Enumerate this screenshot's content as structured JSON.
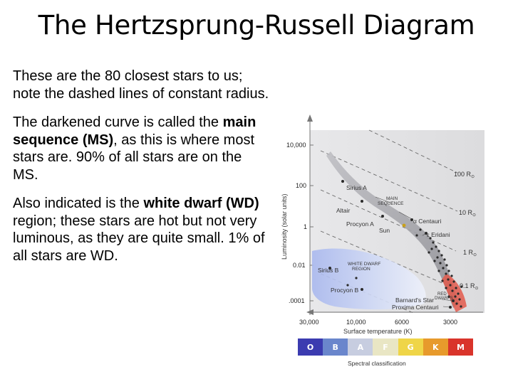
{
  "title": "The Hertzsprung-Russell Diagram",
  "paragraphs": {
    "p1": "These are the 80 closest stars to us; note the dashed lines of constant radius.",
    "p2_pre": "The darkened curve is called the ",
    "p2_bold": "main sequence (MS)",
    "p2_post": ", as this is where most stars are. 90% of all stars are on the MS.",
    "p3_pre": "Also indicated is the ",
    "p3_bold": "white dwarf (WD)",
    "p3_post": " region; these stars are hot but not very luminous, as they are quite small. 1% of all stars are WD."
  },
  "diagram": {
    "y_axis_label": "Luminosity (solar units)",
    "x_axis_label": "Surface temperature (K)",
    "y_ticks": [
      "10,000",
      "100",
      "1",
      "0.01",
      ".0001"
    ],
    "x_ticks": [
      "30,000",
      "10,000",
      "6000",
      "3000"
    ],
    "radius_labels": [
      "100 R",
      "10 R",
      "1 R",
      "0.1 R"
    ],
    "radius_symbol": "⊙",
    "star_labels": {
      "sirius_a": "Sirius A",
      "altair": "Altair",
      "procyon_a": "Procyon A",
      "sun": "Sun",
      "alpha_centauri": "α Centauri",
      "eridani": "ε Eridani",
      "sirius_b": "Sirius B",
      "procyon_b": "Procyon B",
      "barnards_star": "Barnard's Star",
      "proxima_centauri": "Proxima Centauri"
    },
    "region_labels": {
      "main_sequence_1": "MAIN",
      "main_sequence_2": "SEQUENCE",
      "white_dwarf_1": "WHITE DWARF",
      "white_dwarf_2": "REGION",
      "red_dwarfs_1": "RED",
      "red_dwarfs_2": "DWARFS"
    }
  },
  "spectral": {
    "classes": [
      {
        "letter": "O",
        "color": "#3b3bb0"
      },
      {
        "letter": "B",
        "color": "#6a86cc"
      },
      {
        "letter": "A",
        "color": "#c7cde0"
      },
      {
        "letter": "F",
        "color": "#e9e6c4"
      },
      {
        "letter": "G",
        "color": "#efd548"
      },
      {
        "letter": "K",
        "color": "#e79a2c"
      },
      {
        "letter": "M",
        "color": "#d9342b"
      }
    ],
    "caption": "Spectral classification"
  }
}
